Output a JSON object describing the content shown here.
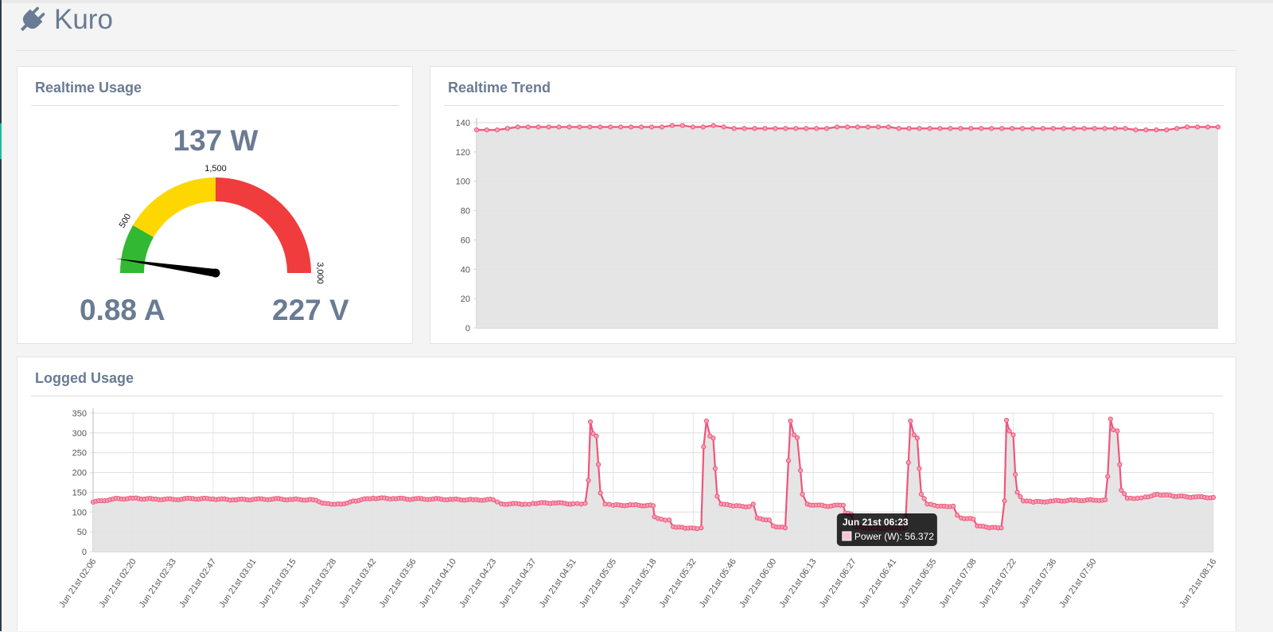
{
  "app": {
    "title": "Kuro",
    "icon": "plug-icon"
  },
  "colors": {
    "line": "#f0557a",
    "area": "#e2e2e2",
    "green": "#32b832",
    "yellow": "#ffd700",
    "red": "#f03c3c",
    "text": "#6a7b93"
  },
  "usage": {
    "title": "Realtime Usage",
    "power": "137 W",
    "current": "0.88 A",
    "voltage": "227 V",
    "gauge": {
      "min": 0,
      "max": 3000,
      "value": 137,
      "bands": [
        {
          "from": 0,
          "to": 500,
          "color": "green"
        },
        {
          "from": 500,
          "to": 1500,
          "color": "yellow"
        },
        {
          "from": 1500,
          "to": 3000,
          "color": "red"
        }
      ],
      "labels": [
        {
          "value": 500,
          "text": "500"
        },
        {
          "value": 1500,
          "text": "1,500"
        },
        {
          "value": 3000,
          "text": "3,000"
        }
      ]
    }
  },
  "trend": {
    "title": "Realtime Trend"
  },
  "logged": {
    "title": "Logged Usage",
    "tooltip": {
      "title": "Jun 21st 06:23",
      "label": "Power (W): 56.372"
    }
  },
  "chart_data": [
    {
      "type": "gauge",
      "min": 0,
      "max": 3000,
      "value": 137,
      "tick_labels": [
        "500",
        "1,500",
        "3,000"
      ]
    },
    {
      "type": "area",
      "ylim": [
        0,
        140
      ],
      "yticks": [
        0,
        20,
        40,
        60,
        80,
        100,
        120,
        140
      ],
      "series": [
        {
          "values": [
            135,
            135,
            135,
            136,
            137,
            137,
            137,
            137,
            137,
            137,
            137,
            137,
            137,
            137,
            137,
            137,
            137,
            137,
            137,
            138,
            138,
            137,
            137,
            138,
            137,
            136,
            136,
            136,
            136,
            136,
            136,
            136,
            136,
            136,
            136,
            137,
            137,
            137,
            137,
            137,
            137,
            136,
            136,
            136,
            136,
            136,
            136,
            136,
            136,
            136,
            136,
            136,
            136,
            136,
            136,
            136,
            136,
            136,
            136,
            136,
            136,
            136,
            136,
            136,
            135,
            135,
            135,
            135,
            136,
            137,
            137,
            137,
            137
          ]
        }
      ]
    },
    {
      "type": "area",
      "ylim": [
        0,
        350
      ],
      "yticks": [
        0,
        50,
        100,
        150,
        200,
        250,
        300,
        350
      ],
      "categories": [
        "Jun 21st 02:06",
        "Jun 21st 02:20",
        "Jun 21st 02:33",
        "Jun 21st 02:47",
        "Jun 21st 03:01",
        "Jun 21st 03:15",
        "Jun 21st 03:28",
        "Jun 21st 03:42",
        "Jun 21st 03:56",
        "Jun 21st 04:10",
        "Jun 21st 04:23",
        "Jun 21st 04:37",
        "Jun 21st 04:51",
        "Jun 21st 05:05",
        "Jun 21st 05:18",
        "Jun 21st 05:32",
        "Jun 21st 05:46",
        "Jun 21st 06:00",
        "Jun 21st 06:13",
        "Jun 21st 06:27",
        "Jun 21st 06:41",
        "Jun 21st 06:55",
        "Jun 21st 07:08",
        "Jun 21st 07:22",
        "Jun 21st 07:36",
        "Jun 21st 07:50",
        "Jun 21st 08:16"
      ],
      "series": [
        {
          "name": "Power (W)",
          "points": [
            [
              0,
              125
            ],
            [
              0.5,
              133
            ],
            [
              1,
              135
            ],
            [
              1.5,
              133
            ],
            [
              2,
              132
            ],
            [
              2.5,
              134
            ],
            [
              3,
              133
            ],
            [
              3.5,
              131
            ],
            [
              4,
              132
            ],
            [
              4.5,
              133
            ],
            [
              5,
              132
            ],
            [
              5.5,
              131
            ],
            [
              5.8,
              122
            ],
            [
              6.2,
              120
            ],
            [
              6.5,
              128
            ],
            [
              7,
              135
            ],
            [
              7.5,
              134
            ],
            [
              8,
              133
            ],
            [
              8.5,
              133
            ],
            [
              9,
              132
            ],
            [
              9.5,
              131
            ],
            [
              10,
              131
            ],
            [
              10.2,
              121
            ],
            [
              10.8,
              120
            ],
            [
              11,
              122
            ],
            [
              11.5,
              123
            ],
            [
              12,
              121
            ],
            [
              12.2,
              120
            ],
            [
              12.3,
              122
            ],
            [
              12.38,
              180
            ],
            [
              12.43,
              328
            ],
            [
              12.5,
              298
            ],
            [
              12.58,
              292
            ],
            [
              12.63,
              220
            ],
            [
              12.68,
              148
            ],
            [
              12.8,
              120
            ],
            [
              13,
              117
            ],
            [
              13.5,
              118
            ],
            [
              14,
              116
            ],
            [
              14.03,
              88
            ],
            [
              14.2,
              82
            ],
            [
              14.4,
              80
            ],
            [
              14.5,
              63
            ],
            [
              14.8,
              59
            ],
            [
              15.1,
              58
            ],
            [
              15.2,
              60
            ],
            [
              15.26,
              265
            ],
            [
              15.33,
              330
            ],
            [
              15.42,
              292
            ],
            [
              15.5,
              287
            ],
            [
              15.55,
              210
            ],
            [
              15.6,
              140
            ],
            [
              15.7,
              120
            ],
            [
              16,
              115
            ],
            [
              16.4,
              114
            ],
            [
              16.5,
              120
            ],
            [
              16.6,
              85
            ],
            [
              16.9,
              80
            ],
            [
              17,
              65
            ],
            [
              17.3,
              60
            ],
            [
              17.38,
              230
            ],
            [
              17.43,
              330
            ],
            [
              17.52,
              295
            ],
            [
              17.6,
              288
            ],
            [
              17.68,
              205
            ],
            [
              17.73,
              145
            ],
            [
              17.85,
              120
            ],
            [
              18.3,
              115
            ],
            [
              18.75,
              117
            ],
            [
              18.8,
              98
            ],
            [
              18.95,
              95
            ],
            [
              19.05,
              62
            ],
            [
              19.5,
              59
            ],
            [
              20,
              60
            ],
            [
              20.3,
              61
            ],
            [
              20.38,
              225
            ],
            [
              20.43,
              330
            ],
            [
              20.52,
              295
            ],
            [
              20.6,
              287
            ],
            [
              20.65,
              210
            ],
            [
              20.7,
              145
            ],
            [
              20.85,
              120
            ],
            [
              21.2,
              115
            ],
            [
              21.5,
              115
            ],
            [
              21.6,
              92
            ],
            [
              21.7,
              85
            ],
            [
              22.0,
              82
            ],
            [
              22.1,
              65
            ],
            [
              22.4,
              60
            ],
            [
              22.7,
              60
            ],
            [
              22.78,
              128
            ],
            [
              22.83,
              332
            ],
            [
              22.9,
              305
            ],
            [
              23.0,
              295
            ],
            [
              23.05,
              195
            ],
            [
              23.1,
              150
            ],
            [
              23.25,
              128
            ],
            [
              23.5,
              125
            ],
            [
              24,
              128
            ],
            [
              24.5,
              130
            ],
            [
              25,
              130
            ],
            [
              25.3,
              131
            ],
            [
              25.36,
              190
            ],
            [
              25.43,
              335
            ],
            [
              25.5,
              308
            ],
            [
              25.6,
              305
            ],
            [
              25.66,
              220
            ],
            [
              25.7,
              155
            ],
            [
              25.85,
              135
            ],
            [
              26.1,
              135
            ],
            [
              26.3,
              138
            ],
            [
              26.6,
              145
            ],
            [
              27,
              140
            ],
            [
              27.5,
              138
            ],
            [
              28,
              137
            ]
          ]
        }
      ],
      "tooltip": {
        "x": "Jun 21st 06:23",
        "y": 56.372
      }
    }
  ]
}
